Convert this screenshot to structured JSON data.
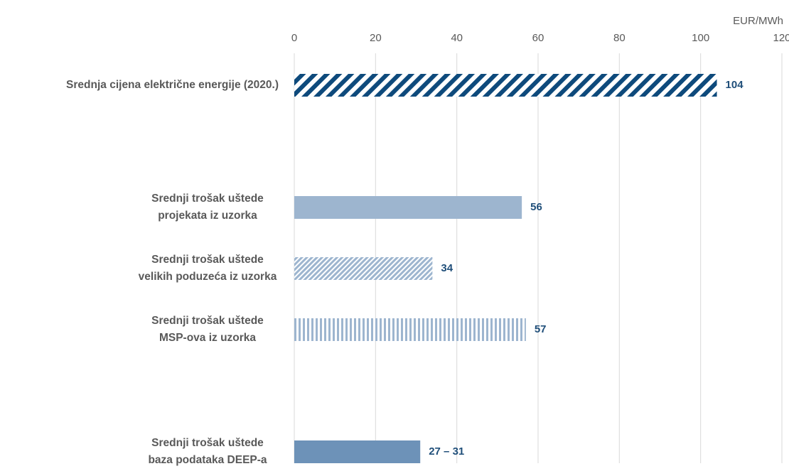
{
  "chart_data": {
    "type": "bar",
    "orientation": "horizontal",
    "x_axis_label": "EUR/MWh",
    "categories": [
      [
        "Srednja cijena električne energije (2020.)"
      ],
      null,
      [
        "Srednji trošak uštede",
        "projekata iz uzorka"
      ],
      [
        "Srednji trošak uštede",
        "velikih poduzeća iz uzorka"
      ],
      [
        "Srednji trošak uštede",
        "MSP-ova iz uzorka"
      ],
      null,
      [
        "Srednji trošak uštede",
        "baza podataka DEEP-a"
      ]
    ],
    "values": [
      104,
      null,
      56,
      34,
      57,
      null,
      31
    ],
    "value_labels": [
      "104",
      null,
      "56",
      "34",
      "57",
      null,
      "27 – 31"
    ],
    "colors": [
      "#0e4a7c",
      null,
      "#9db5cf",
      "#9db5cf",
      "#9db5cf",
      null,
      "#6d92b8"
    ],
    "patterns": [
      "diagonal",
      null,
      "solid",
      "diagonal-fine",
      "vertical",
      null,
      "solid"
    ],
    "xlim": [
      0,
      120
    ],
    "xticks": [
      0,
      20,
      40,
      60,
      80,
      100,
      120
    ],
    "grid": true
  }
}
